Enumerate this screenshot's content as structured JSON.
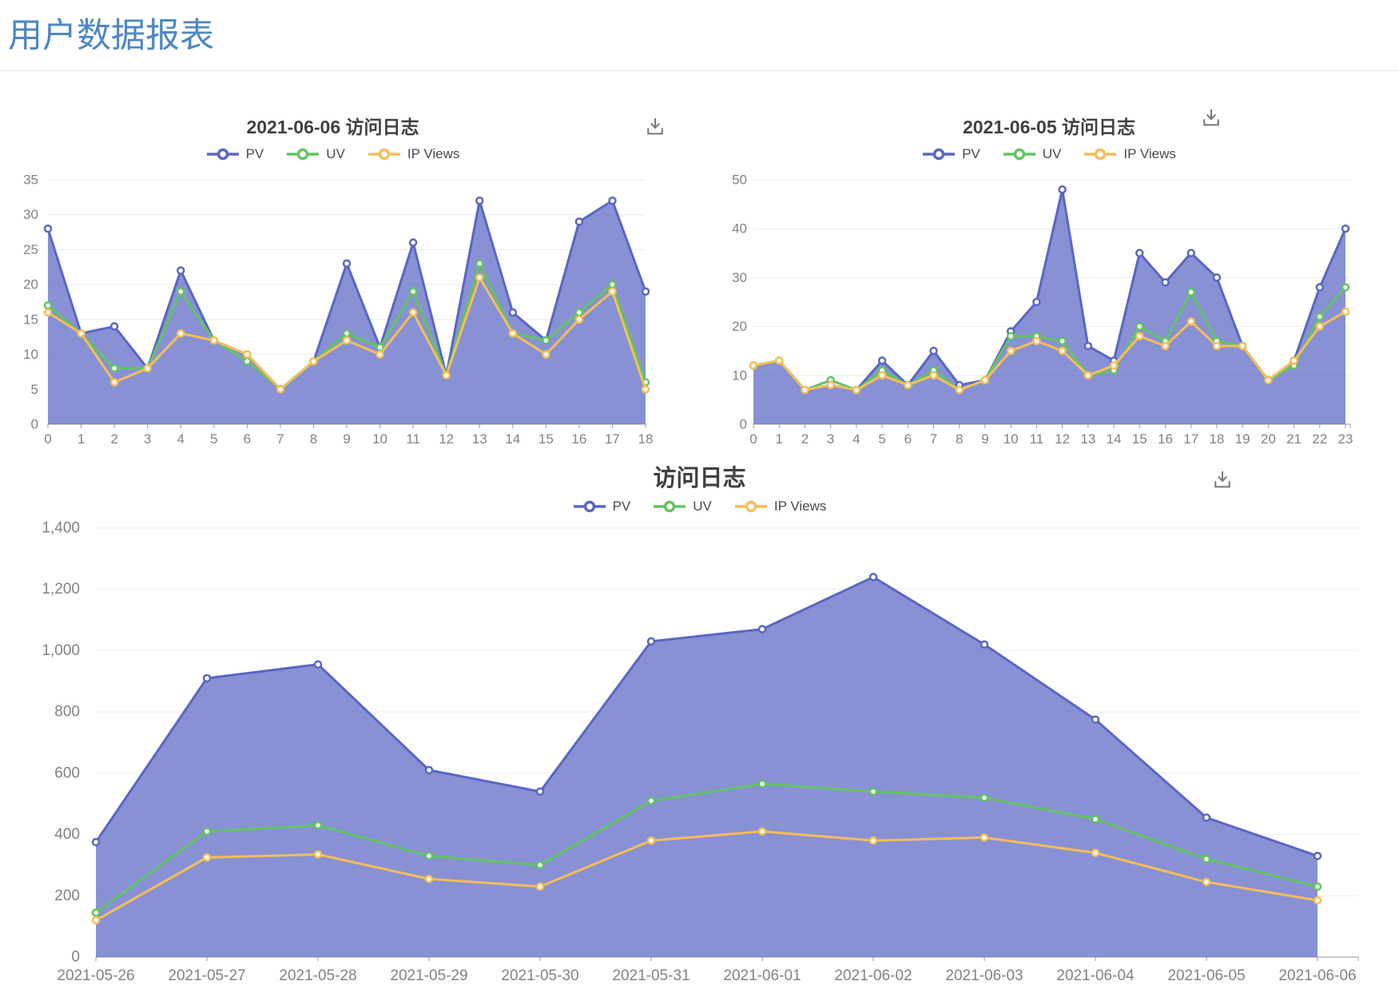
{
  "page": {
    "title": "用户数据报表"
  },
  "icons": {
    "download": "⤓"
  },
  "colors": {
    "page_title": "#4C87C5",
    "chart_title": "#404040",
    "pv": "#5A66C4",
    "uv": "#62C462",
    "ip_views": "#F5BE56",
    "area_fill": "rgba(90,102,196,0.72)",
    "grid": "#E8EBF4",
    "axis": "#999999",
    "axis_label": "#828282"
  },
  "chart_data": [
    {
      "id": "log-2021-06-06",
      "type": "area",
      "title": "2021-06-06 访问日志",
      "legend_position": "top",
      "grid": true,
      "categories": [
        "0",
        "1",
        "2",
        "3",
        "4",
        "5",
        "6",
        "7",
        "8",
        "9",
        "10",
        "11",
        "12",
        "13",
        "14",
        "15",
        "16",
        "17",
        "18"
      ],
      "ylim": [
        0,
        35
      ],
      "yticks": [
        "0",
        "5",
        "10",
        "15",
        "20",
        "25",
        "30",
        "35"
      ],
      "series": [
        {
          "name": "PV",
          "color": "#5A66C4",
          "area": true,
          "values": [
            28,
            13,
            14,
            8,
            22,
            12,
            10,
            5,
            9,
            23,
            11,
            26,
            7,
            32,
            16,
            12,
            29,
            32,
            19
          ]
        },
        {
          "name": "UV",
          "color": "#62C462",
          "values": [
            17,
            13,
            8,
            8,
            19,
            12,
            9,
            5,
            9,
            13,
            11,
            19,
            7,
            23,
            13,
            12,
            16,
            20,
            6
          ]
        },
        {
          "name": "IP Views",
          "color": "#F5BE56",
          "values": [
            16,
            13,
            6,
            8,
            13,
            12,
            10,
            5,
            9,
            12,
            10,
            16,
            7,
            21,
            13,
            10,
            15,
            19,
            5
          ]
        }
      ]
    },
    {
      "id": "log-2021-06-05",
      "type": "area",
      "title": "2021-06-05 访问日志",
      "legend_position": "top",
      "grid": true,
      "categories": [
        "0",
        "1",
        "2",
        "3",
        "4",
        "5",
        "6",
        "7",
        "8",
        "9",
        "10",
        "11",
        "12",
        "13",
        "14",
        "15",
        "16",
        "17",
        "18",
        "19",
        "20",
        "21",
        "22",
        "23"
      ],
      "ylim": [
        0,
        50
      ],
      "yticks": [
        "0",
        "10",
        "20",
        "30",
        "40",
        "50"
      ],
      "series": [
        {
          "name": "PV",
          "color": "#5A66C4",
          "area": true,
          "values": [
            12,
            13,
            7,
            8,
            7,
            13,
            8,
            15,
            8,
            9,
            19,
            25,
            48,
            16,
            13,
            35,
            29,
            35,
            30,
            16,
            9,
            13,
            28,
            40
          ]
        },
        {
          "name": "UV",
          "color": "#62C462",
          "values": [
            12,
            13,
            7,
            9,
            7,
            11,
            8,
            11,
            7,
            9,
            18,
            18,
            17,
            10,
            11,
            20,
            17,
            27,
            17,
            16,
            9,
            12,
            22,
            28
          ]
        },
        {
          "name": "IP Views",
          "color": "#F5BE56",
          "values": [
            12,
            13,
            7,
            8,
            7,
            10,
            8,
            10,
            7,
            9,
            15,
            17,
            15,
            10,
            12,
            18,
            16,
            21,
            16,
            16,
            9,
            13,
            20,
            23
          ]
        }
      ]
    },
    {
      "id": "log-range",
      "type": "area",
      "title": "访问日志",
      "legend_position": "top",
      "grid": true,
      "categories": [
        "2021-05-26",
        "2021-05-27",
        "2021-05-28",
        "2021-05-29",
        "2021-05-30",
        "2021-05-31",
        "2021-06-01",
        "2021-06-02",
        "2021-06-03",
        "2021-06-04",
        "2021-06-05",
        "2021-06-06"
      ],
      "ylim": [
        0,
        1400
      ],
      "yticks": [
        "0",
        "200",
        "400",
        "600",
        "800",
        "1,000",
        "1,200",
        "1,400"
      ],
      "series": [
        {
          "name": "PV",
          "color": "#5A66C4",
          "area": true,
          "values": [
            375,
            910,
            955,
            610,
            540,
            1030,
            1070,
            1240,
            1020,
            775,
            455,
            330
          ]
        },
        {
          "name": "UV",
          "color": "#62C462",
          "values": [
            145,
            410,
            430,
            330,
            300,
            510,
            565,
            540,
            520,
            450,
            320,
            230
          ]
        },
        {
          "name": "IP Views",
          "color": "#F5BE56",
          "values": [
            120,
            325,
            335,
            255,
            230,
            380,
            410,
            380,
            390,
            340,
            245,
            185
          ]
        }
      ]
    }
  ]
}
